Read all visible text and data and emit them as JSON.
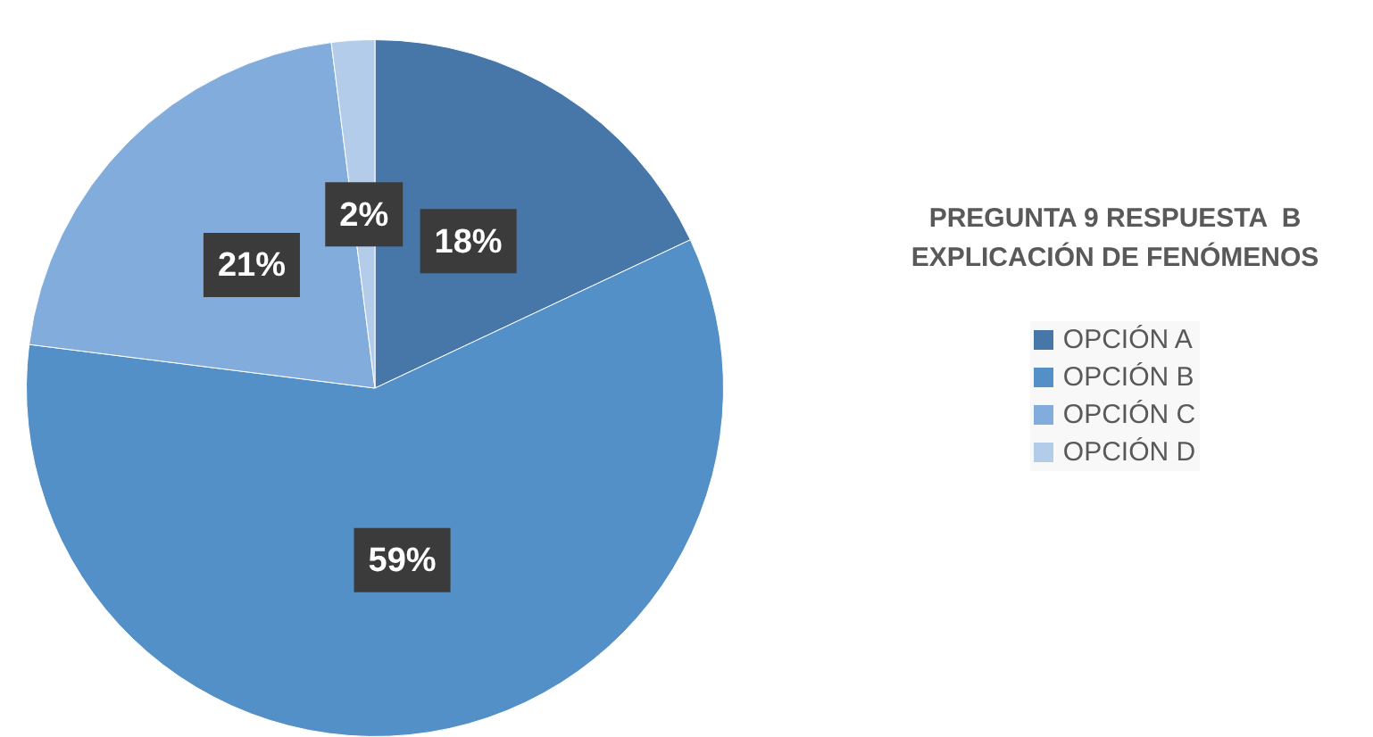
{
  "chart_data": {
    "type": "pie",
    "title": "PREGUNTA 9 RESPUESTA  B\nEXPLICACIÓN DE FENÓMENOS",
    "categories": [
      "OPCIÓN A",
      "OPCIÓN B",
      "OPCIÓN C",
      "OPCIÓN D"
    ],
    "values": [
      18,
      59,
      21,
      2
    ],
    "colors": [
      "#4677a8",
      "#5490c8",
      "#82acdb",
      "#b3cce9"
    ],
    "value_labels": [
      "18%",
      "59%",
      "21%",
      "2%"
    ],
    "legend": "right"
  }
}
